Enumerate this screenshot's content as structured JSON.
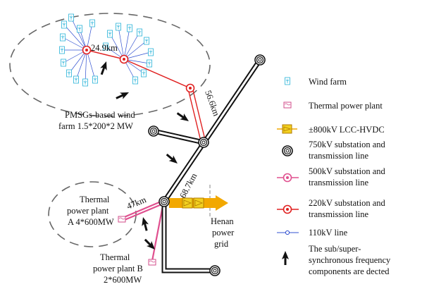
{
  "labels": {
    "wind_cluster": [
      "PMSGs-based wind",
      "farm 1.5*200*2 MW"
    ],
    "plant_a": [
      "Thermal",
      "power plant",
      "A 4*600MW"
    ],
    "plant_b": [
      "Thermal",
      "power plant B",
      "2*600MW"
    ],
    "henan": [
      "Henan",
      "power",
      "grid"
    ],
    "dist_wind_link": "24.9km",
    "dist_220": "56.6km",
    "dist_750": "68.7km",
    "dist_500": "47km"
  },
  "legend": [
    {
      "icon": "wind-farm-icon",
      "lines": [
        "Wind farm"
      ]
    },
    {
      "icon": "thermal-power-plant-icon",
      "lines": [
        "Thermal power plant"
      ]
    },
    {
      "icon": "hvdc-converter-icon",
      "lines": [
        "±800kV LCC-HVDC"
      ]
    },
    {
      "icon": "substation-750kv-icon",
      "lines": [
        "750kV substation and",
        "transmission line"
      ]
    },
    {
      "icon": "substation-500kv-icon",
      "lines": [
        "500kV substation and",
        "transmission line"
      ]
    },
    {
      "icon": "substation-220kv-icon",
      "lines": [
        "220kV substation and",
        "transmission line"
      ]
    },
    {
      "icon": "line-110kv-icon",
      "lines": [
        "110kV  line"
      ]
    },
    {
      "icon": "detection-arrow-icon",
      "lines": [
        "The sub/super-",
        "synchronous frequency",
        "components are dected"
      ]
    }
  ],
  "colors": {
    "line_750kv": "#111111",
    "line_500kv": "#e0508f",
    "line_220kv": "#e02020",
    "line_110kv": "#3050d0",
    "wind_icon": "#26b2d8",
    "thermal_icon": "#d24b8a",
    "hvdc": "#f2a800"
  }
}
